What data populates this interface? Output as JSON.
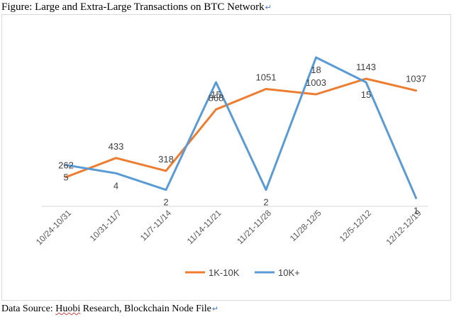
{
  "figure_title": "Figure: Large and Extra-Large Transactions on BTC Network",
  "source_prefix": "Data Source: ",
  "source_underlined": "Huobi",
  "source_suffix": " Research, Blockchain Node File",
  "return_glyph": "↵",
  "chart_data": {
    "type": "line",
    "categories": [
      "10/24-10/31",
      "10/31-11/7",
      "11/7-11/14",
      "11/14-11/21",
      "11/21-11/28",
      "11/28-12/5",
      "12/5-12/12",
      "12/12-12/19"
    ],
    "series": [
      {
        "name": "1K-10K",
        "color": "#ED7D31",
        "values": [
          262,
          433,
          318,
          868,
          1051,
          1003,
          1143,
          1037
        ]
      },
      {
        "name": "10K+",
        "color": "#5B9BD5",
        "values": [
          5,
          4,
          2,
          15,
          2,
          18,
          15,
          1
        ]
      }
    ],
    "legend_position": "bottom",
    "grid": false
  }
}
